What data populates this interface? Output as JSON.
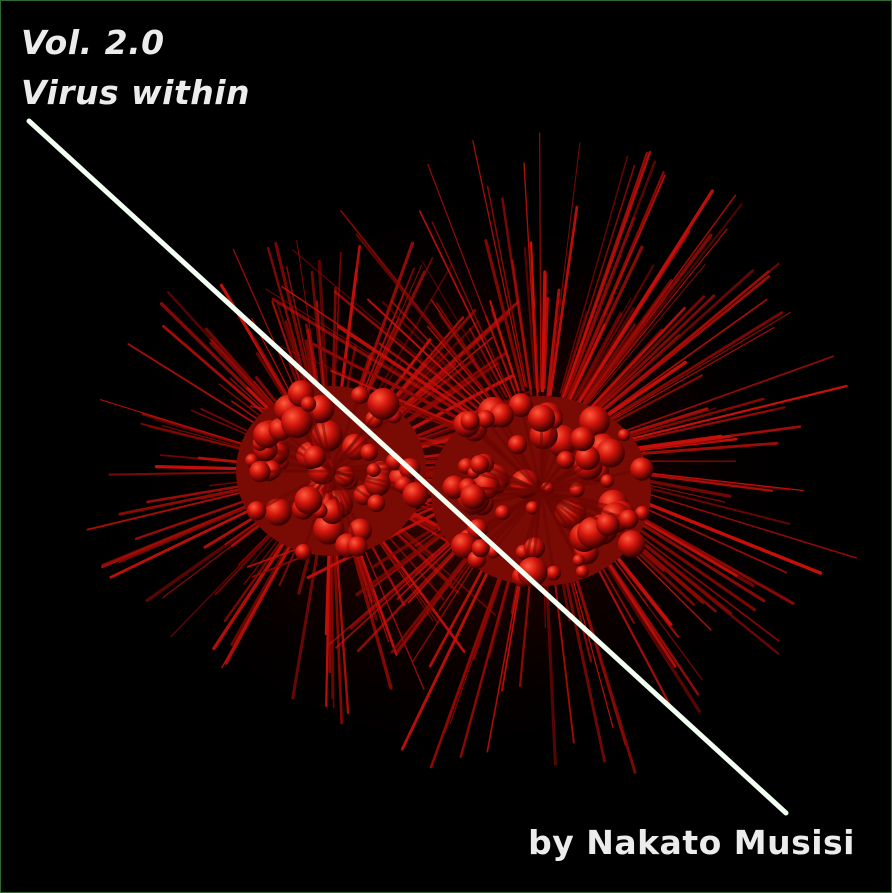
{
  "cover": {
    "volume": "Vol. 2.0",
    "subtitle": "Virus within",
    "author": "by Nakato Musisi"
  },
  "colors": {
    "background": "#000000",
    "text": "#ececec",
    "divider_line": "#f4fff4",
    "virus_red": "#d0140c",
    "border": "#2f6b2f"
  },
  "icons": [
    "virus-illustration",
    "diagonal-divider-line"
  ]
}
